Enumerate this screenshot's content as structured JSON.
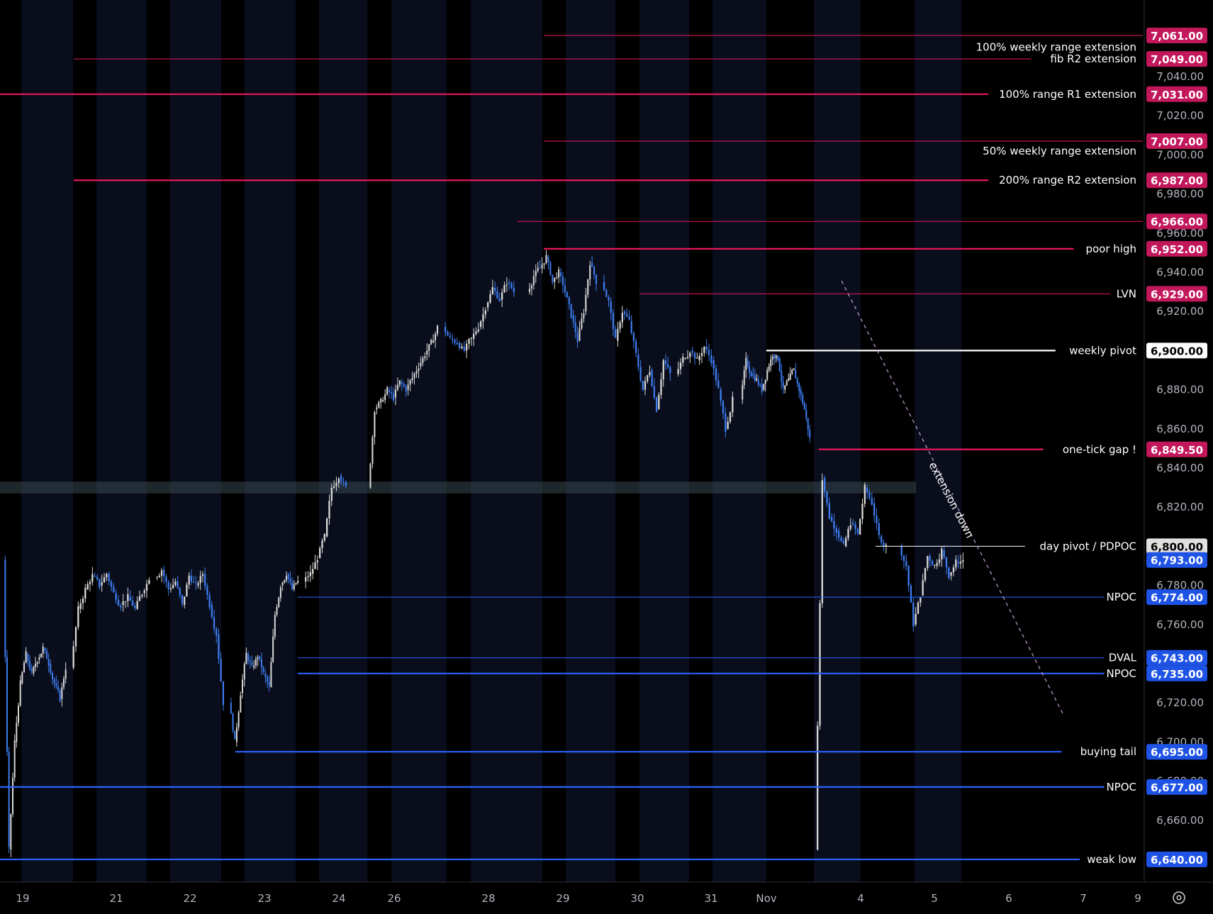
{
  "chart_data": {
    "type": "candlestick",
    "title": "",
    "xlabel": "",
    "ylabel": "",
    "ylim": [
      6627,
      7072
    ],
    "x_ticks": [
      "19",
      "21",
      "22",
      "23",
      "24",
      "26",
      "28",
      "29",
      "30",
      "31",
      "Nov",
      "4",
      "5",
      "6",
      "7",
      "9"
    ],
    "y_ticks": [
      "7,040.00",
      "7,020.00",
      "7,000.00",
      "6,980.00",
      "6,960.00",
      "6,940.00",
      "6,920.00",
      "6,880.00",
      "6,860.00",
      "6,840.00",
      "6,820.00",
      "6,780.00",
      "6,760.00",
      "6,720.00",
      "6,700.00",
      "6,680.00",
      "6,660.00"
    ],
    "y_tick_values": [
      7040,
      7020,
      7000,
      6980,
      6960,
      6940,
      6920,
      6880,
      6860,
      6840,
      6820,
      6780,
      6760,
      6720,
      6700,
      6680,
      6660
    ],
    "series": [
      {
        "bullish_color": "#d9d9d9",
        "bearish_color": "#3d7cf0",
        "close_path": [
          [
            "19",
            6645
          ],
          [
            "19",
            6700
          ],
          [
            "19",
            6730
          ],
          [
            "19",
            6745
          ],
          [
            "19",
            6735
          ],
          [
            "19",
            6742
          ],
          [
            "19",
            6748
          ],
          [
            "19",
            6740
          ],
          [
            "19",
            6730
          ],
          [
            "19",
            6722
          ],
          [
            "19",
            6738
          ],
          [
            "21",
            6768
          ],
          [
            "21",
            6778
          ],
          [
            "21",
            6785
          ],
          [
            "21",
            6780
          ],
          [
            "21",
            6786
          ],
          [
            "21",
            6776
          ],
          [
            "21",
            6770
          ],
          [
            "21",
            6774
          ],
          [
            "21",
            6768
          ],
          [
            "21",
            6776
          ],
          [
            "21",
            6784
          ],
          [
            "22",
            6788
          ],
          [
            "22",
            6778
          ],
          [
            "22",
            6782
          ],
          [
            "22",
            6770
          ],
          [
            "22",
            6785
          ],
          [
            "22",
            6780
          ],
          [
            "22",
            6786
          ],
          [
            "22",
            6770
          ],
          [
            "22",
            6755
          ],
          [
            "22",
            6720
          ],
          [
            "23",
            6700
          ],
          [
            "23",
            6725
          ],
          [
            "23",
            6745
          ],
          [
            "23",
            6738
          ],
          [
            "23",
            6744
          ],
          [
            "23",
            6735
          ],
          [
            "23",
            6728
          ],
          [
            "23",
            6765
          ],
          [
            "23",
            6780
          ],
          [
            "23",
            6786
          ],
          [
            "23",
            6778
          ],
          [
            "23",
            6782
          ],
          [
            "24",
            6786
          ],
          [
            "24",
            6794
          ],
          [
            "24",
            6805
          ],
          [
            "24",
            6830
          ],
          [
            "24",
            6836
          ],
          [
            "24",
            6830
          ],
          [
            "26",
            6870
          ],
          [
            "26",
            6874
          ],
          [
            "26",
            6880
          ],
          [
            "26",
            6876
          ],
          [
            "26",
            6884
          ],
          [
            "26",
            6880
          ],
          [
            "26",
            6886
          ],
          [
            "26",
            6892
          ],
          [
            "26",
            6898
          ],
          [
            "26",
            6904
          ],
          [
            "26",
            6912
          ],
          [
            "28",
            6906
          ],
          [
            "28",
            6904
          ],
          [
            "28",
            6900
          ],
          [
            "28",
            6906
          ],
          [
            "28",
            6912
          ],
          [
            "28",
            6922
          ],
          [
            "28",
            6932
          ],
          [
            "28",
            6926
          ],
          [
            "28",
            6935
          ],
          [
            "28",
            6930
          ],
          [
            "29",
            6938
          ],
          [
            "29",
            6942
          ],
          [
            "29",
            6948
          ],
          [
            "29",
            6935
          ],
          [
            "29",
            6940
          ],
          [
            "29",
            6930
          ],
          [
            "29",
            6918
          ],
          [
            "29",
            6905
          ],
          [
            "29",
            6920
          ],
          [
            "29",
            6945
          ],
          [
            "29",
            6935
          ],
          [
            "30",
            6925
          ],
          [
            "30",
            6905
          ],
          [
            "30",
            6920
          ],
          [
            "30",
            6915
          ],
          [
            "30",
            6898
          ],
          [
            "30",
            6880
          ],
          [
            "30",
            6890
          ],
          [
            "30",
            6870
          ],
          [
            "30",
            6895
          ],
          [
            "30",
            6888
          ],
          [
            "31",
            6896
          ],
          [
            "31",
            6900
          ],
          [
            "31",
            6895
          ],
          [
            "31",
            6902
          ],
          [
            "31",
            6895
          ],
          [
            "31",
            6880
          ],
          [
            "31",
            6860
          ],
          [
            "31",
            6875
          ],
          [
            "Nov",
            6895
          ],
          [
            "Nov",
            6888
          ],
          [
            "Nov",
            6885
          ],
          [
            "Nov",
            6880
          ],
          [
            "Nov",
            6890
          ],
          [
            "Nov",
            6898
          ],
          [
            "Nov",
            6896
          ],
          [
            "Nov",
            6880
          ],
          [
            "Nov",
            6885
          ],
          [
            "Nov",
            6890
          ],
          [
            "Nov",
            6880
          ],
          [
            "Nov",
            6870
          ],
          [
            "Nov",
            6855
          ],
          [
            "4",
            6835
          ],
          [
            "4",
            6815
          ],
          [
            "4",
            6808
          ],
          [
            "4",
            6800
          ],
          [
            "4",
            6812
          ],
          [
            "4",
            6806
          ],
          [
            "4",
            6830
          ],
          [
            "4",
            6822
          ],
          [
            "4",
            6805
          ],
          [
            "4",
            6800
          ],
          [
            "5",
            6790
          ],
          [
            "5",
            6760
          ],
          [
            "5",
            6775
          ],
          [
            "5",
            6795
          ],
          [
            "5",
            6790
          ],
          [
            "5",
            6798
          ],
          [
            "5",
            6785
          ],
          [
            "5",
            6792
          ],
          [
            "5",
            6793
          ]
        ]
      }
    ],
    "levels": [
      {
        "price": "7,061.00",
        "value": 7061,
        "label": "",
        "color": "#e8175d",
        "from": "29",
        "weight": "thin"
      },
      {
        "price": "7,049.00",
        "value": 7049,
        "label": "fib R2 extension",
        "color": "#e8175d",
        "from": "21",
        "weight": "thin"
      },
      {
        "price": "7,031.00",
        "value": 7031,
        "label": "100% range R1 extension",
        "color": "#e8175d",
        "from": "19",
        "weight": "thick"
      },
      {
        "price": "7,007.00",
        "value": 7007,
        "label": "",
        "color": "#e8175d",
        "from": "29",
        "weight": "thin"
      },
      {
        "price": "6,987.00",
        "value": 6987,
        "label": "200% range R2 extension",
        "color": "#e8175d",
        "from": "21",
        "weight": "thick"
      },
      {
        "price": "6,966.00",
        "value": 6966,
        "label": "",
        "color": "#e8175d",
        "from": "28",
        "weight": "thin"
      },
      {
        "price": "6,952.00",
        "value": 6952,
        "label": "poor high",
        "color": "#e8175d",
        "from": "29",
        "weight": "thick"
      },
      {
        "price": "6,929.00",
        "value": 6929,
        "label": "LVN",
        "color": "#e8175d",
        "from": "30",
        "weight": "thin"
      },
      {
        "price": "6,900.00",
        "value": 6900,
        "label": "weekly pivot",
        "color": "#ffffff",
        "from": "31",
        "weight": "thick"
      },
      {
        "price": "6,849.50",
        "value": 6849.5,
        "label": "one-tick gap !",
        "color": "#e8175d",
        "from": "Nov",
        "weight": "thick"
      },
      {
        "price": "6,800.00",
        "value": 6800,
        "label": "day pivot / PDPOC",
        "color": "#ffffff",
        "from": "4",
        "weight": "thin"
      },
      {
        "price": "6,774.00",
        "value": 6774,
        "label": "NPOC",
        "color": "#2962ff",
        "from": "23",
        "weight": "thin"
      },
      {
        "price": "6,743.00",
        "value": 6743,
        "label": "DVAL",
        "color": "#2962ff",
        "from": "23",
        "weight": "thin"
      },
      {
        "price": "6,735.00",
        "value": 6735,
        "label": "NPOC",
        "color": "#2962ff",
        "from": "23",
        "weight": "thick"
      },
      {
        "price": "6,695.00",
        "value": 6695,
        "label": "buying tail",
        "color": "#2962ff",
        "from": "22",
        "weight": "thick"
      },
      {
        "price": "6,677.00",
        "value": 6677,
        "label": "NPOC",
        "color": "#2962ff",
        "from": "19",
        "weight": "thick"
      },
      {
        "price": "6,640.00",
        "value": 6640,
        "label": "weak low",
        "color": "#2962ff",
        "from": "19",
        "weight": "thick"
      }
    ],
    "multi_labels": [
      {
        "value": 7055,
        "label": "100% weekly range extension"
      },
      {
        "value": 7002,
        "label": "50% weekly range extension"
      }
    ],
    "last_price": {
      "price": "6,793.00",
      "value": 6793,
      "color": "#2962ff"
    },
    "zones": [
      {
        "from_value": 6827,
        "to_value": 6833,
        "color": "#37474f"
      }
    ],
    "annotations": [
      {
        "text": "extension down",
        "color": "#ffffff"
      }
    ],
    "trendline": {
      "start": [
        "4",
        6925
      ],
      "end": [
        "6",
        6712
      ],
      "color": "#c8a0d8"
    }
  }
}
